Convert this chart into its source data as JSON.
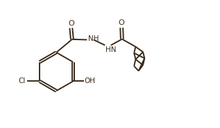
{
  "background": "#ffffff",
  "line_color": "#3a2a1a",
  "line_width": 1.4,
  "font_size": 7.5,
  "figsize": [
    3.17,
    1.85
  ],
  "dpi": 100,
  "xlim": [
    0,
    10
  ],
  "ylim": [
    0,
    5.8
  ]
}
